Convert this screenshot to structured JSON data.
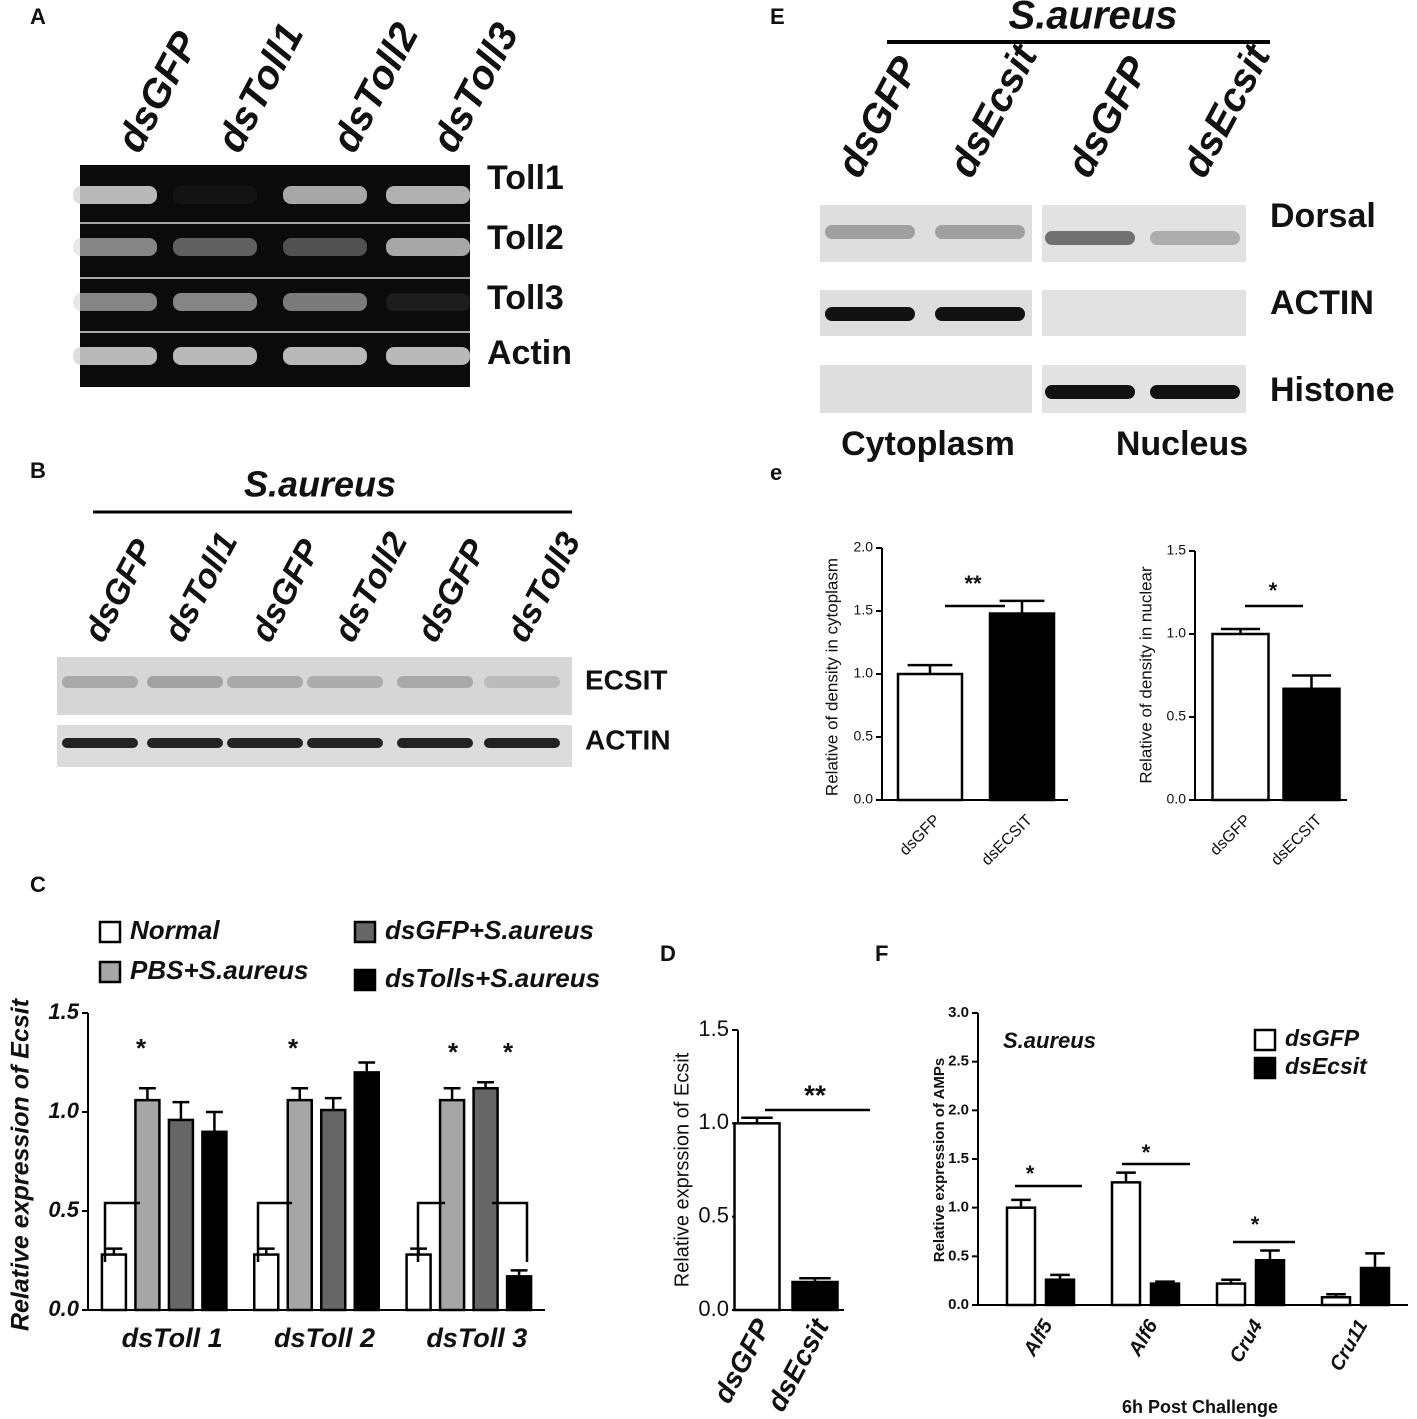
{
  "panel_labels": [
    "A",
    "B",
    "C",
    "D",
    "E",
    "e",
    "F"
  ],
  "blot_a": {
    "lanes": [
      "dsGFP",
      "dsToll1",
      "dsToll2",
      "dsToll3"
    ],
    "rows": [
      "Toll1",
      "Toll2",
      "Toll3",
      "Actin"
    ]
  },
  "blot_b": {
    "title": "S.aureus",
    "lanes": [
      "dsGFP",
      "dsToll1",
      "dsGFP",
      "dsToll2",
      "dsGFP",
      "dsToll3"
    ],
    "rows": [
      "ECSIT",
      "ACTIN"
    ]
  },
  "blot_e": {
    "title": "S.aureus",
    "lanes": [
      "dsGFP",
      "dsEcsit",
      "dsGFP",
      "dsEcsit"
    ],
    "rows": [
      "Dorsal",
      "ACTIN",
      "Histone"
    ],
    "fractions": [
      "Cytoplasm",
      "Nucleus"
    ]
  },
  "chart_data": [
    {
      "type": "bar",
      "y_label": "Relative expression of Ecsit",
      "categories": [
        "dsToll 1",
        "dsToll 2",
        "dsToll 3"
      ],
      "series": [
        {
          "name": "Normal",
          "color": "#ffffff",
          "values": [
            0.28,
            0.28,
            0.28
          ],
          "errors": [
            0.03,
            0.03,
            0.03
          ]
        },
        {
          "name": "PBS+S.aureus",
          "color": "#a6a6a6",
          "values": [
            1.06,
            1.06,
            1.06
          ],
          "errors": [
            0.06,
            0.06,
            0.06
          ]
        },
        {
          "name": "dsGFP+S.aureus",
          "color": "#666666",
          "values": [
            0.96,
            1.01,
            1.12
          ],
          "errors": [
            0.09,
            0.06,
            0.03
          ]
        },
        {
          "name": "dsTolls+S.aureus",
          "color": "#000000",
          "values": [
            0.9,
            1.2,
            0.17
          ],
          "errors": [
            0.1,
            0.05,
            0.03
          ]
        }
      ],
      "ylim": [
        0,
        1.5
      ],
      "yticks": [
        {
          "value": 0,
          "label": "0.0"
        },
        0.5,
        {
          "value": 1,
          "label": "1.0"
        },
        1.5
      ],
      "annotations": [
        "*",
        "*",
        "*",
        "*"
      ]
    },
    {
      "type": "bar",
      "y_label": "Relative exprssion of Ecsit",
      "categories": [
        "dsGFP",
        "dsEcsit"
      ],
      "values": [
        1.0,
        0.15
      ],
      "errors": [
        0.03,
        0.02
      ],
      "colors": [
        "#ffffff",
        "#000000"
      ],
      "ylim": [
        0,
        1.5
      ],
      "yticks": [
        {
          "value": 0,
          "label": "0.0"
        },
        0.5,
        {
          "value": 1,
          "label": "1.0"
        },
        1.5
      ],
      "annotations": [
        "**"
      ]
    },
    {
      "type": "bar",
      "y_label": "Relative of density in cytoplasm",
      "categories": [
        "dsGFP",
        "dsECSIT"
      ],
      "values": [
        1.0,
        1.48
      ],
      "errors": [
        0.07,
        0.1
      ],
      "colors": [
        "#ffffff",
        "#000000"
      ],
      "ylim": [
        0,
        2
      ],
      "yticks": [
        {
          "value": 0,
          "label": "0.0"
        },
        0.5,
        {
          "value": 1,
          "label": "1.0"
        },
        1.5,
        {
          "value": 2,
          "label": "2.0"
        }
      ],
      "annotations": [
        "**"
      ]
    },
    {
      "type": "bar",
      "y_label": "Relative of density in nuclear",
      "categories": [
        "dsGFP",
        "dsECSIT"
      ],
      "values": [
        1.0,
        0.67
      ],
      "errors": [
        0.03,
        0.08
      ],
      "colors": [
        "#ffffff",
        "#000000"
      ],
      "ylim": [
        0,
        1.5
      ],
      "yticks": [
        {
          "value": 0,
          "label": "0.0"
        },
        0.5,
        {
          "value": 1,
          "label": "1.0"
        },
        1.5
      ],
      "annotations": [
        "*"
      ]
    },
    {
      "type": "bar",
      "y_label": "Relative expression of AMPs",
      "x_label": "6h Post Challenge",
      "categories": [
        "Alf5",
        "Alf6",
        "Cru4",
        "Cru11"
      ],
      "series": [
        {
          "name": "dsGFP",
          "color": "#ffffff",
          "values": [
            1.0,
            1.26,
            0.22,
            0.08
          ],
          "errors": [
            0.08,
            0.1,
            0.04,
            0.03
          ]
        },
        {
          "name": "dsEcsit",
          "color": "#000000",
          "values": [
            0.26,
            0.22,
            0.46,
            0.38
          ],
          "errors": [
            0.05,
            0.02,
            0.1,
            0.15
          ]
        }
      ],
      "ylim": [
        0,
        3
      ],
      "yticks": [
        {
          "value": 0,
          "label": "0.0"
        },
        0.5,
        {
          "value": 1,
          "label": "1.0"
        },
        1.5,
        {
          "value": 2,
          "label": "2.0"
        },
        2.5,
        {
          "value": 3,
          "label": "3.0"
        }
      ],
      "annotations": [
        "S.aureus",
        "*",
        "*",
        "*"
      ]
    }
  ]
}
